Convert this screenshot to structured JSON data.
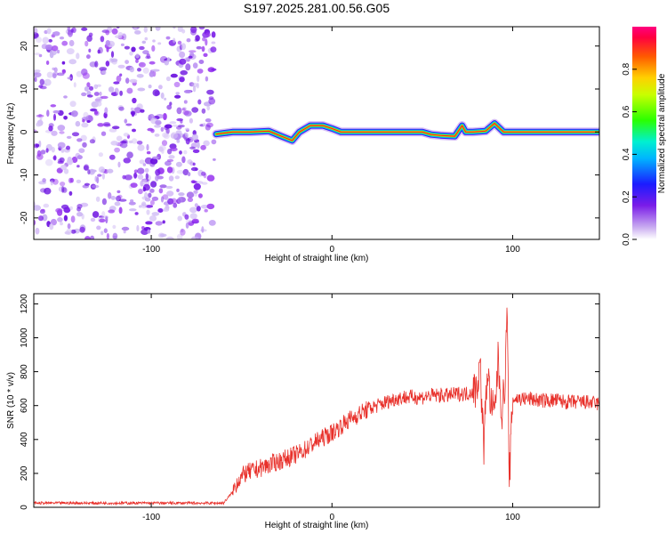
{
  "title": "S197.2025.281.00.56.G05",
  "chart_data": [
    {
      "type": "heatmap",
      "title": "S197.2025.281.00.56.G05",
      "xlabel": "Height of straight line (km)",
      "ylabel": "Frequency (Hz)",
      "xlim": [
        -165,
        148
      ],
      "ylim": [
        -25,
        24.5
      ],
      "xticks": [
        -100,
        0,
        100
      ],
      "xtick_labels": [
        "-100",
        "0",
        "100"
      ],
      "yticks": [
        -20,
        -10,
        0,
        10,
        20
      ],
      "ytick_labels": [
        "-20",
        "-10",
        "0",
        "10",
        "20"
      ],
      "noise_region_x": [
        -165,
        -65
      ],
      "colorbar": {
        "label": "Normalized spectral amplitude",
        "range": [
          0,
          1
        ],
        "ticks": [
          0,
          0.2,
          0.4,
          0.6,
          0.8
        ],
        "tick_labels": [
          "0.0",
          "0.2",
          "0.4",
          "0.6",
          "0.8"
        ]
      },
      "ridge": {
        "x": [
          -64,
          -55,
          -45,
          -35,
          -28,
          -22,
          -18,
          -12,
          -5,
          0,
          5,
          10,
          30,
          50,
          55,
          60,
          68,
          72,
          74,
          78,
          85,
          90,
          95,
          100,
          120,
          148
        ],
        "frequency_hz": [
          -0.5,
          0,
          0,
          0.2,
          -1,
          -2,
          0,
          1.5,
          1.5,
          0.8,
          0,
          0,
          0,
          0,
          -0.6,
          -0.8,
          -1,
          1.5,
          0,
          0,
          0.2,
          2,
          0,
          0,
          0,
          0
        ]
      }
    },
    {
      "type": "line",
      "xlabel": "Height of straight line (km)",
      "ylabel": "SNR (10 * v/v)",
      "xlim": [
        -165,
        148
      ],
      "ylim": [
        0,
        1260
      ],
      "xticks": [
        -100,
        0,
        100
      ],
      "xtick_labels": [
        "-100",
        "0",
        "100"
      ],
      "yticks": [
        0,
        200,
        400,
        600,
        800,
        1000,
        1200
      ],
      "ytick_labels": [
        "0",
        "200",
        "400",
        "600",
        "800",
        "1000",
        "1200"
      ],
      "color": "#e8302a",
      "series": [
        {
          "name": "SNR",
          "x": [
            -165,
            -140,
            -120,
            -100,
            -80,
            -60,
            -55,
            -52,
            -48,
            -45,
            -40,
            -35,
            -30,
            -25,
            -20,
            -15,
            -10,
            -5,
            0,
            5,
            10,
            15,
            20,
            25,
            30,
            35,
            40,
            45,
            50,
            55,
            60,
            65,
            70,
            75,
            80,
            82,
            84,
            86,
            88,
            90,
            92,
            94,
            96,
            97,
            98,
            100,
            105,
            110,
            115,
            120,
            125,
            130,
            135,
            140,
            148
          ],
          "y": [
            25,
            25,
            25,
            25,
            25,
            25,
            90,
            160,
            200,
            210,
            230,
            250,
            270,
            290,
            310,
            340,
            380,
            410,
            440,
            480,
            520,
            550,
            580,
            600,
            620,
            640,
            650,
            650,
            650,
            660,
            660,
            660,
            670,
            670,
            700,
            850,
            350,
            820,
            600,
            550,
            880,
            550,
            780,
            1260,
            120,
            640,
            640,
            640,
            630,
            630,
            630,
            620,
            620,
            620,
            610
          ]
        }
      ]
    }
  ]
}
